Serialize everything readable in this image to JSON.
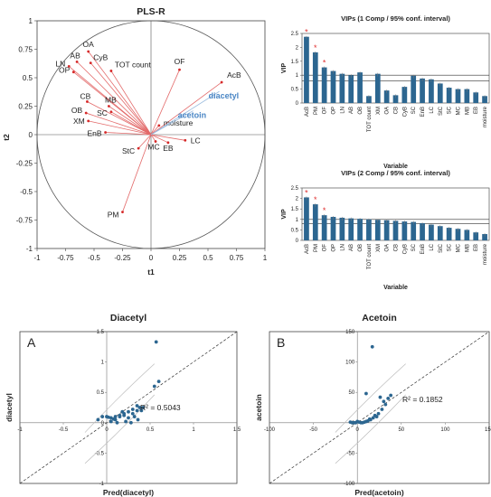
{
  "chart_data": [
    {
      "type": "scatter",
      "title": "PLS-R",
      "xlabel": "t1",
      "ylabel": "t2",
      "xlim": [
        -1,
        1
      ],
      "ylim": [
        -1,
        1
      ],
      "x_ticks": [
        "-1",
        "-0.75",
        "-0.5",
        "-0.25",
        "0",
        "0.25",
        "0.5",
        "0.75",
        "1"
      ],
      "y_ticks": [
        "1",
        "0.75",
        "0.5",
        "0.25",
        "0",
        "-0.25",
        "-0.5",
        "-0.75",
        "-1"
      ],
      "loadings": [
        {
          "label": "OA",
          "x": -0.55,
          "y": 0.73
        },
        {
          "label": "AB",
          "x": -0.65,
          "y": 0.64
        },
        {
          "label": "LN",
          "x": -0.72,
          "y": 0.6
        },
        {
          "label": "CyB",
          "x": -0.53,
          "y": 0.63
        },
        {
          "label": "OP",
          "x": -0.68,
          "y": 0.55
        },
        {
          "label": "TOT count",
          "x": -0.35,
          "y": 0.56
        },
        {
          "label": "CB",
          "x": -0.56,
          "y": 0.29
        },
        {
          "label": "MB",
          "x": -0.37,
          "y": 0.25
        },
        {
          "label": "OB",
          "x": -0.57,
          "y": 0.19
        },
        {
          "label": "SC",
          "x": -0.35,
          "y": 0.2
        },
        {
          "label": "XM",
          "x": -0.55,
          "y": 0.12
        },
        {
          "label": "EnB",
          "x": -0.4,
          "y": 0.02
        },
        {
          "label": "OF",
          "x": 0.25,
          "y": 0.57
        },
        {
          "label": "AcB",
          "x": 0.62,
          "y": 0.46
        },
        {
          "label": "moisture",
          "x": 0.07,
          "y": 0.08
        },
        {
          "label": "MC",
          "x": 0.04,
          "y": -0.06
        },
        {
          "label": "EB",
          "x": 0.15,
          "y": -0.07
        },
        {
          "label": "LC",
          "x": 0.3,
          "y": -0.05
        },
        {
          "label": "StC",
          "x": -0.11,
          "y": -0.12
        },
        {
          "label": "PM",
          "x": -0.25,
          "y": -0.68
        }
      ],
      "responses": [
        {
          "label": "diacetyl",
          "x": 0.6,
          "y": 0.38
        },
        {
          "label": "acetoin",
          "x": 0.37,
          "y": 0.21
        }
      ]
    },
    {
      "type": "bar",
      "title": "VIPs (1 Comp / 95% conf. interval)",
      "xlabel": "Variable",
      "ylabel": "VIP",
      "ylim": [
        0,
        2.5
      ],
      "y_ticks": [
        "2.5",
        "2",
        "1.5",
        "1",
        "0.5",
        "0"
      ],
      "categories": [
        "AcB",
        "PM",
        "OF",
        "OP",
        "LN",
        "AB",
        "OB",
        "TOT count",
        "XM",
        "OA",
        "CB",
        "CyB",
        "SC",
        "EnB",
        "LC",
        "StC",
        "SC",
        "MC",
        "MB",
        "EB",
        "moisture"
      ],
      "values": [
        2.38,
        1.82,
        1.28,
        1.15,
        1.05,
        1.0,
        1.1,
        0.25,
        1.05,
        0.45,
        0.28,
        0.58,
        0.98,
        0.88,
        0.85,
        0.7,
        0.55,
        0.5,
        0.5,
        0.38,
        0.25
      ],
      "significant": [
        true,
        true,
        true,
        false,
        false,
        false,
        false,
        false,
        false,
        false,
        false,
        false,
        false,
        false,
        false,
        false,
        false,
        false,
        false,
        false,
        false
      ],
      "reference_lines": [
        1,
        0.8
      ]
    },
    {
      "type": "bar",
      "title": "VIPs (2 Comp / 95% conf. interval)",
      "xlabel": "Variable",
      "ylabel": "VIP",
      "ylim": [
        0,
        2.5
      ],
      "y_ticks": [
        "2.5",
        "2",
        "1.5",
        "1",
        "0.5",
        "0"
      ],
      "categories": [
        "AcB",
        "PM",
        "OF",
        "OP",
        "LN",
        "AB",
        "OB",
        "TOT count",
        "XM",
        "OA",
        "CB",
        "CyB",
        "SC",
        "EnB",
        "LC",
        "StC",
        "SC",
        "MC",
        "MB",
        "EB",
        "moisture"
      ],
      "values": [
        2.05,
        1.72,
        1.2,
        1.12,
        1.08,
        1.05,
        1.03,
        1.0,
        0.98,
        0.96,
        0.93,
        0.9,
        0.88,
        0.82,
        0.75,
        0.68,
        0.6,
        0.55,
        0.5,
        0.38,
        0.3
      ],
      "significant": [
        true,
        true,
        true,
        false,
        false,
        false,
        false,
        false,
        false,
        false,
        false,
        false,
        false,
        false,
        false,
        false,
        false,
        false,
        false,
        false,
        false
      ],
      "reference_lines": [
        1,
        0.8
      ]
    },
    {
      "type": "scatter",
      "panel_label": "A",
      "title": "Diacetyl",
      "xlabel": "Pred(diacetyl)",
      "ylabel": "diacetyl",
      "xlim": [
        -1,
        1.5
      ],
      "ylim": [
        -1,
        1.5
      ],
      "x_ticks": [
        "-1",
        "-0.5",
        "0",
        "0.5",
        "1",
        "1.5"
      ],
      "y_ticks": [
        "1.5",
        "1",
        "0.5",
        "0",
        "-0.5",
        "-1"
      ],
      "annotation": "R² = 0.5043",
      "x": [
        0.57,
        0.6,
        0.55,
        0.38,
        0.35,
        0.3,
        0.25,
        0.2,
        0.15,
        0.1,
        0.05,
        0.0,
        -0.05,
        -0.1,
        0.05,
        0.1,
        0.15,
        0.2,
        0.25,
        0.3,
        0.35,
        0.4,
        0.28,
        0.22,
        0.12,
        0.08,
        0.02,
        0.18,
        0.32,
        0.36,
        0.42
      ],
      "y": [
        1.33,
        0.68,
        0.6,
        0.25,
        0.2,
        0.22,
        0.18,
        0.15,
        0.12,
        0.1,
        0.08,
        0.1,
        0.1,
        0.05,
        0.02,
        0.05,
        0.1,
        0.12,
        0.08,
        0.15,
        0.28,
        0.2,
        0.0,
        0.02,
        0.0,
        0.06,
        0.09,
        0.18,
        0.1,
        0.05,
        0.25
      ]
    },
    {
      "type": "scatter",
      "panel_label": "B",
      "title": "Acetoin",
      "xlabel": "Pred(acetoin)",
      "ylabel": "acetoin",
      "xlim": [
        -100,
        150
      ],
      "ylim": [
        -100,
        150
      ],
      "x_ticks": [
        "-100",
        "-50",
        "0",
        "50",
        "100",
        "150"
      ],
      "y_ticks": [
        "150",
        "100",
        "50",
        "0",
        "-50",
        "-100"
      ],
      "annotation": "R² = 0.1852",
      "x": [
        17,
        10,
        26,
        35,
        32,
        28,
        24,
        20,
        18,
        15,
        12,
        10,
        8,
        6,
        4,
        2,
        0,
        -2,
        -4,
        -6,
        -8,
        22,
        14,
        30,
        38
      ],
      "y": [
        125,
        48,
        42,
        40,
        30,
        22,
        15,
        12,
        8,
        5,
        3,
        2,
        1,
        0,
        0,
        1,
        2,
        0,
        0,
        0,
        1,
        10,
        6,
        35,
        45
      ]
    }
  ]
}
